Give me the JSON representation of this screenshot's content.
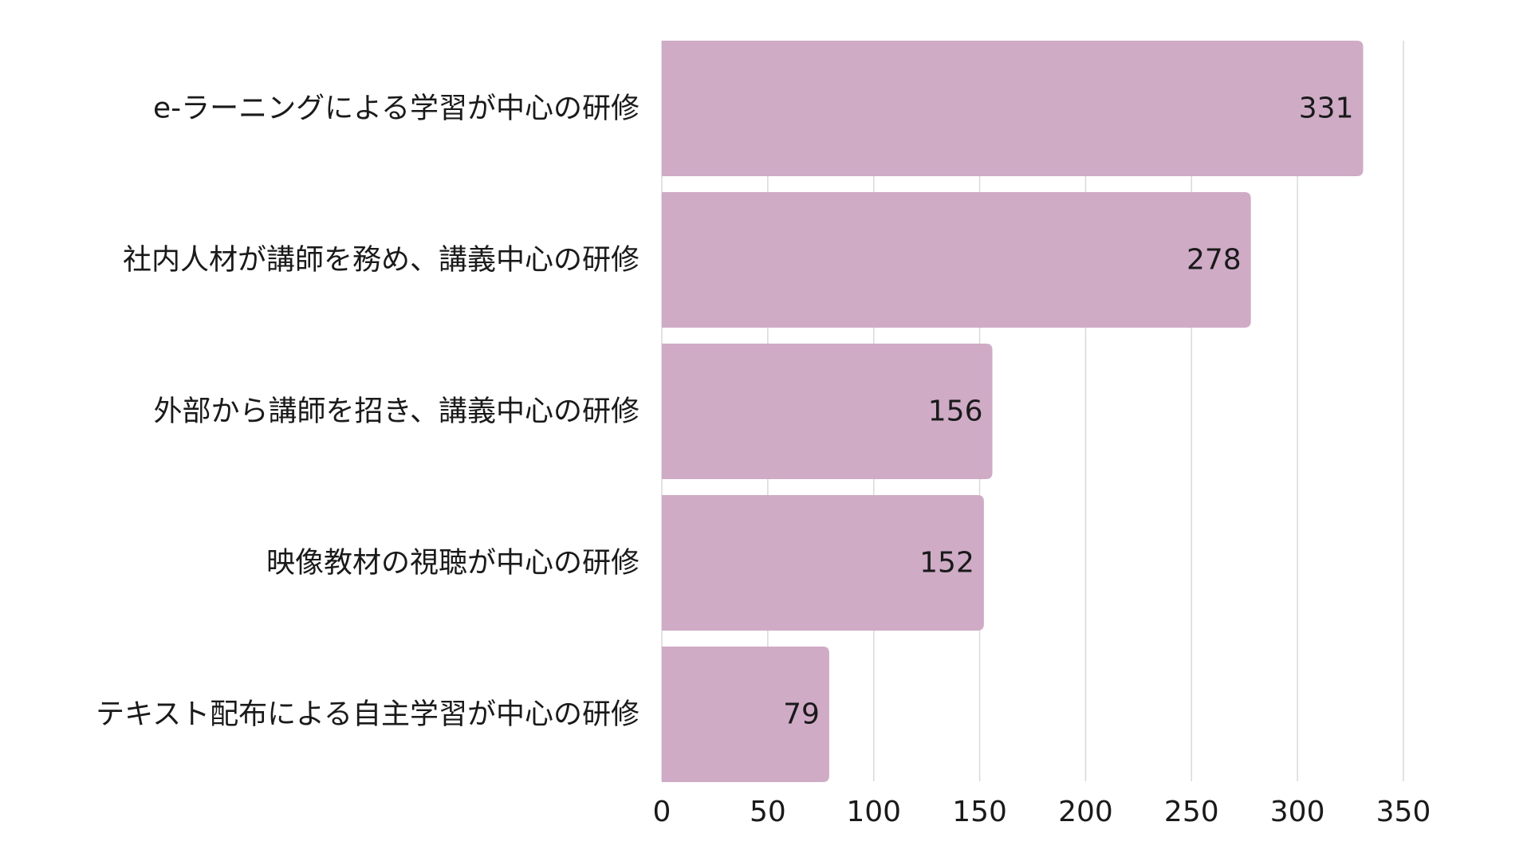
{
  "chart_data": {
    "type": "bar",
    "orientation": "horizontal",
    "categories": [
      "e-ラーニングによる学習が中心の研修",
      "社内人材が講師を務め、講義中心の研修",
      "外部から講師を招き、講義中心の研修",
      "映像教材の視聴が中心の研修",
      "テキスト配布による自主学習が中心の研修"
    ],
    "values": [
      331,
      278,
      156,
      152,
      79
    ],
    "xlim": [
      0,
      350
    ],
    "xticks": [
      "0",
      "50",
      "100",
      "150",
      "200",
      "250",
      "300",
      "350"
    ],
    "title": "",
    "xlabel": "",
    "ylabel": "",
    "grid": "vertical",
    "legend": "none",
    "data_labels": "inside-end",
    "colors": {
      "bar": "#cfabc6",
      "grid": "#d9d9d9",
      "text": "#1a1a1a",
      "background": "#ffffff"
    }
  }
}
